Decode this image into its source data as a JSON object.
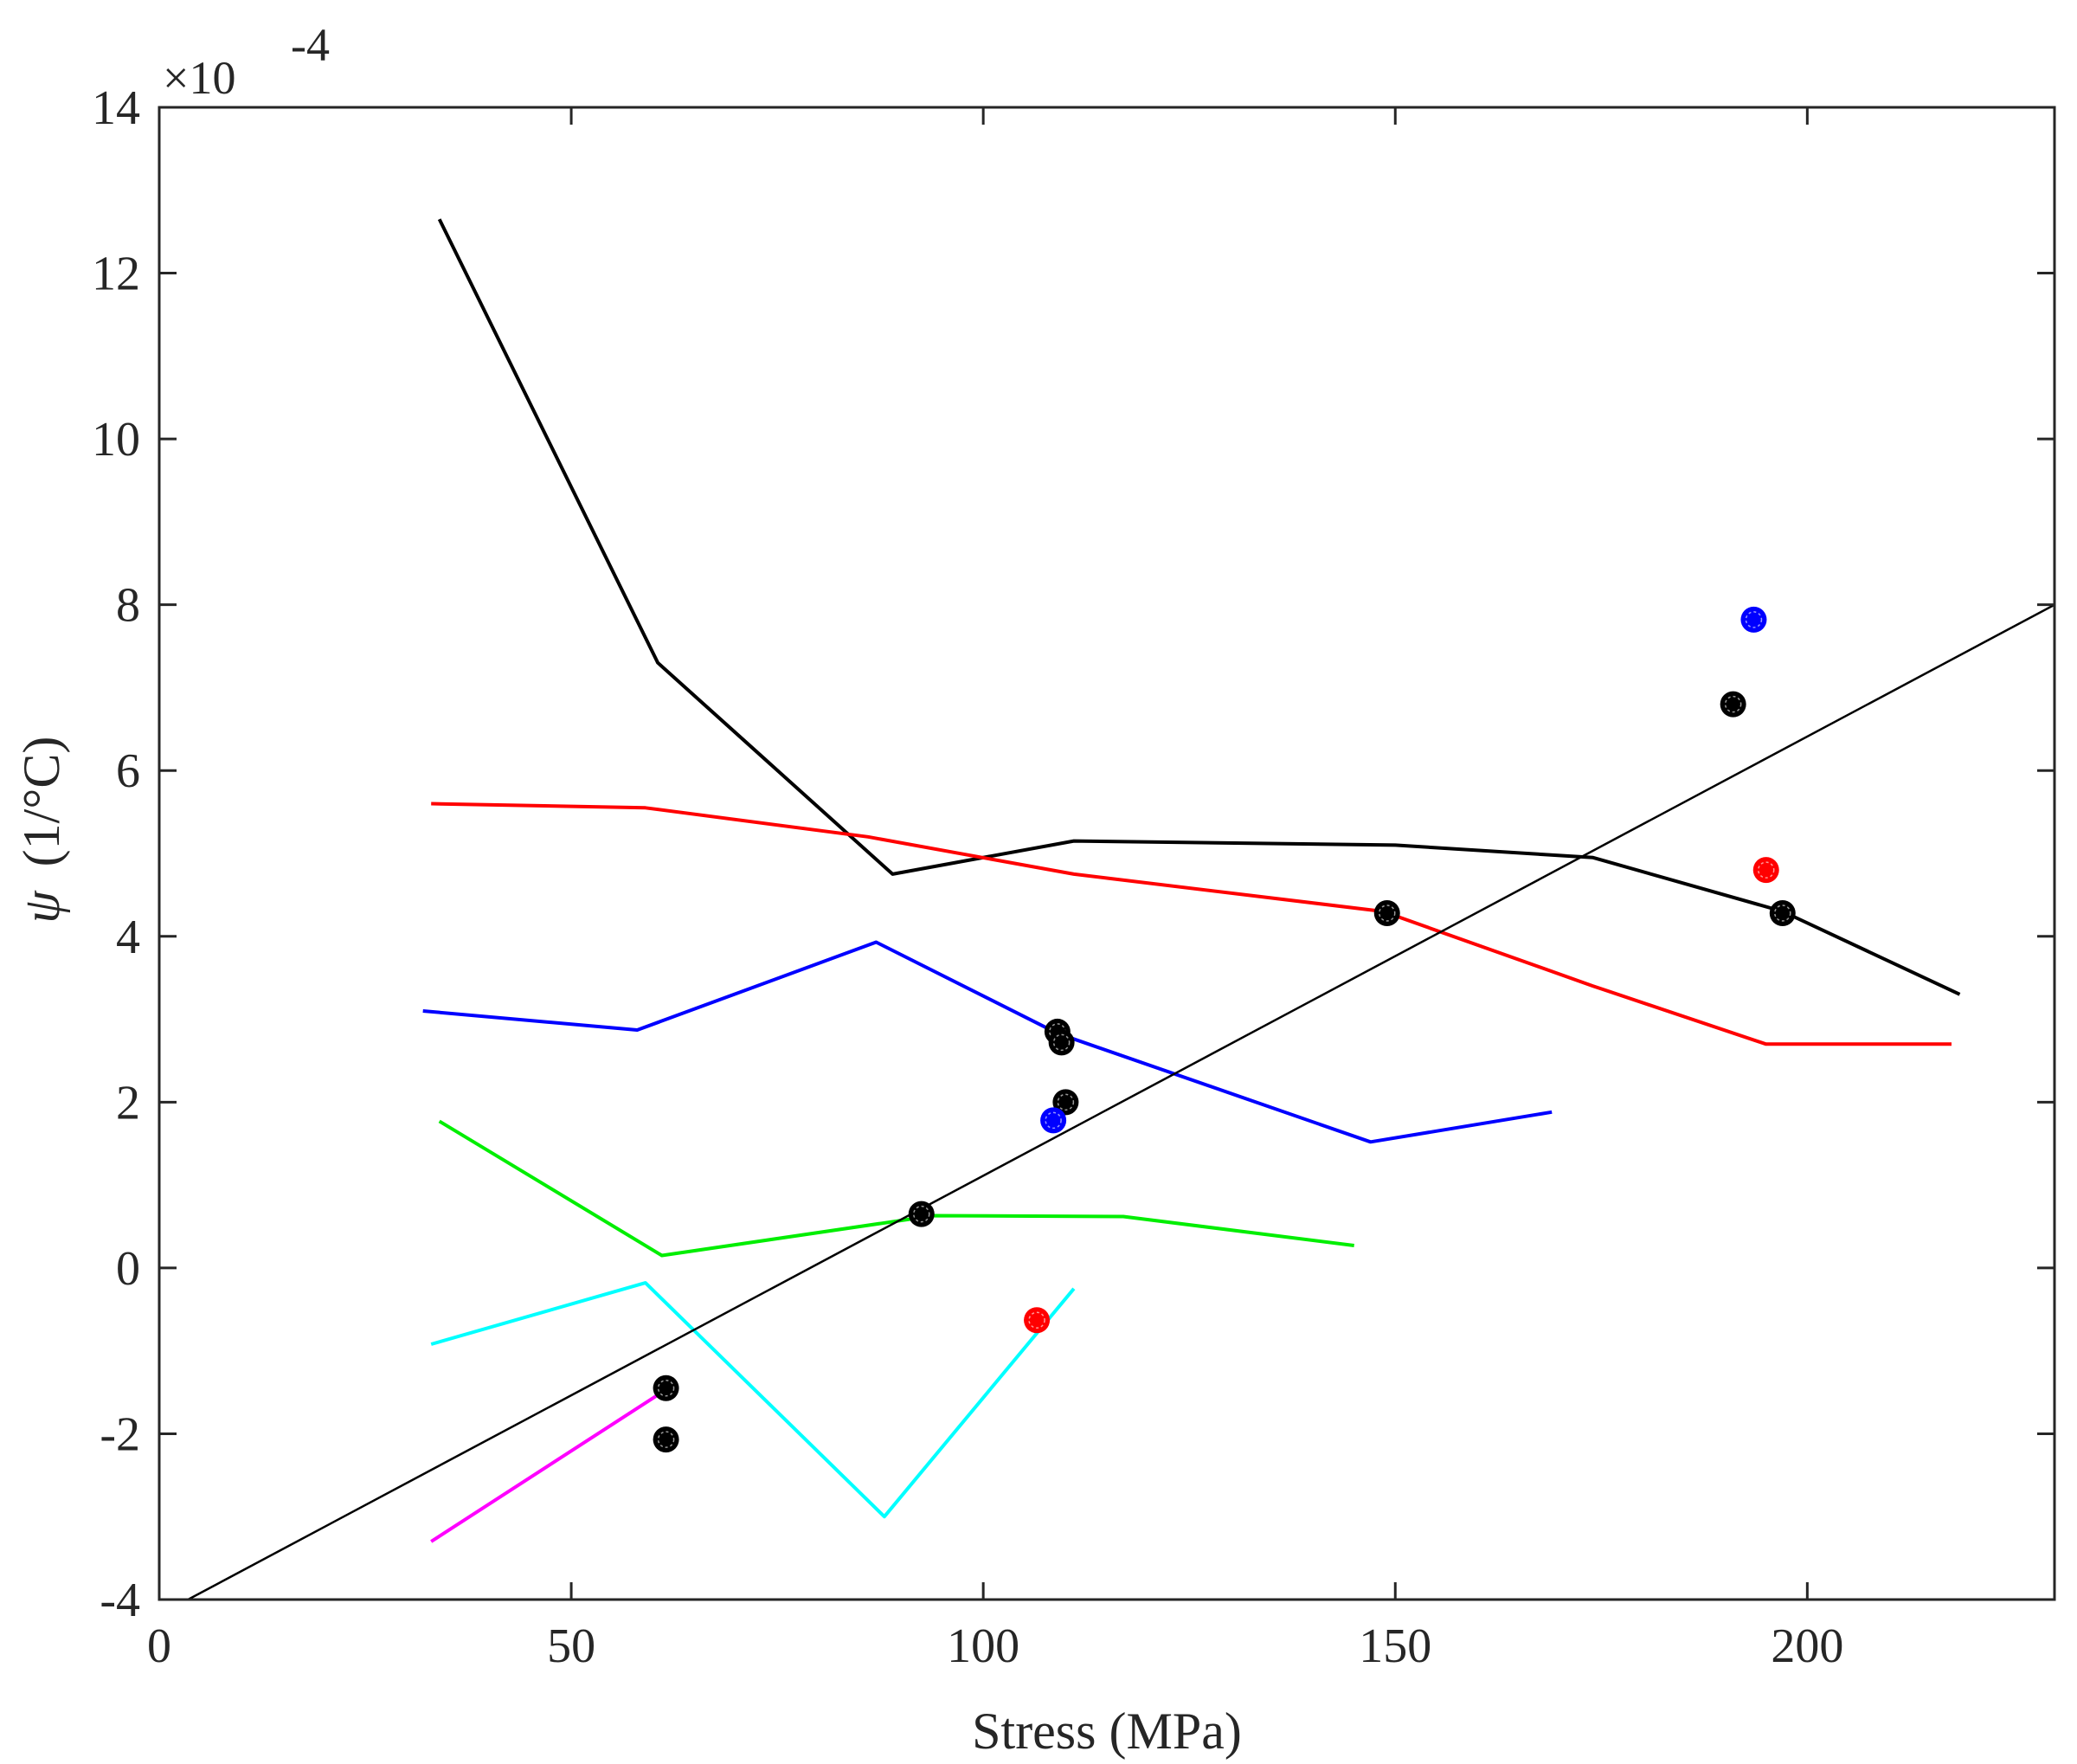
{
  "chart_data": {
    "type": "line",
    "title": "",
    "xlabel": "Stress (MPa)",
    "ylabel_symbol": "ψ",
    "ylabel_unit": "(1/°C)",
    "y_exponent_base": "×10",
    "y_exponent_power": "-4",
    "xlim": [
      0,
      230
    ],
    "ylim": [
      -4,
      14
    ],
    "xticks": [
      0,
      50,
      100,
      150,
      200
    ],
    "yticks": [
      -4,
      -2,
      0,
      2,
      4,
      6,
      8,
      10,
      12,
      14
    ],
    "xtick_labels": [
      "0",
      "50",
      "100",
      "150",
      "200"
    ],
    "ytick_labels": [
      "-4",
      "-2",
      "0",
      "2",
      "4",
      "6",
      "8",
      "10",
      "12",
      "14"
    ],
    "grid": false,
    "series": [
      {
        "name": "black",
        "color": "#000000",
        "x": [
          34,
          60.5,
          89,
          111,
          150,
          174,
          197,
          218.5
        ],
        "y": [
          12.65,
          7.3,
          4.75,
          5.15,
          5.1,
          4.95,
          4.3,
          3.3
        ]
      },
      {
        "name": "red",
        "color": "#ff0000",
        "x": [
          33,
          59,
          86,
          111,
          148.5,
          174,
          195,
          217.5
        ],
        "y": [
          5.6,
          5.55,
          5.2,
          4.75,
          4.3,
          3.4,
          2.7,
          2.7
        ]
      },
      {
        "name": "blue",
        "color": "#0000ff",
        "x": [
          32,
          58,
          87,
          109,
          147,
          169
        ],
        "y": [
          3.1,
          2.87,
          3.93,
          2.83,
          1.52,
          1.88
        ]
      },
      {
        "name": "green",
        "color": "#00ee00",
        "x": [
          34,
          61,
          94,
          117,
          145
        ],
        "y": [
          1.77,
          0.15,
          0.63,
          0.62,
          0.27
        ]
      },
      {
        "name": "cyan",
        "color": "#00ffff",
        "x": [
          33,
          59,
          88,
          111
        ],
        "y": [
          -0.92,
          -0.18,
          -3.0,
          -0.25
        ]
      },
      {
        "name": "magenta",
        "color": "#ff00ff",
        "x": [
          33,
          61
        ],
        "y": [
          -3.3,
          -1.5
        ]
      },
      {
        "name": "fit",
        "color": "#000000",
        "x": [
          3.5,
          230
        ],
        "y": [
          -4.0,
          8.0
        ]
      }
    ],
    "scatter": [
      {
        "color": "#000000",
        "points": [
          [
            61.5,
            -1.45
          ],
          [
            61.5,
            -2.07
          ],
          [
            92.5,
            0.65
          ],
          [
            109,
            2.85
          ],
          [
            109.5,
            2.72
          ],
          [
            110,
            2.0
          ],
          [
            149,
            4.28
          ],
          [
            191,
            6.8
          ],
          [
            197,
            4.28
          ]
        ]
      },
      {
        "color": "#0000ff",
        "points": [
          [
            108.5,
            1.78
          ],
          [
            193.5,
            7.82
          ]
        ]
      },
      {
        "color": "#ff0000",
        "points": [
          [
            106.5,
            -0.63
          ],
          [
            195,
            4.8
          ]
        ]
      }
    ]
  }
}
